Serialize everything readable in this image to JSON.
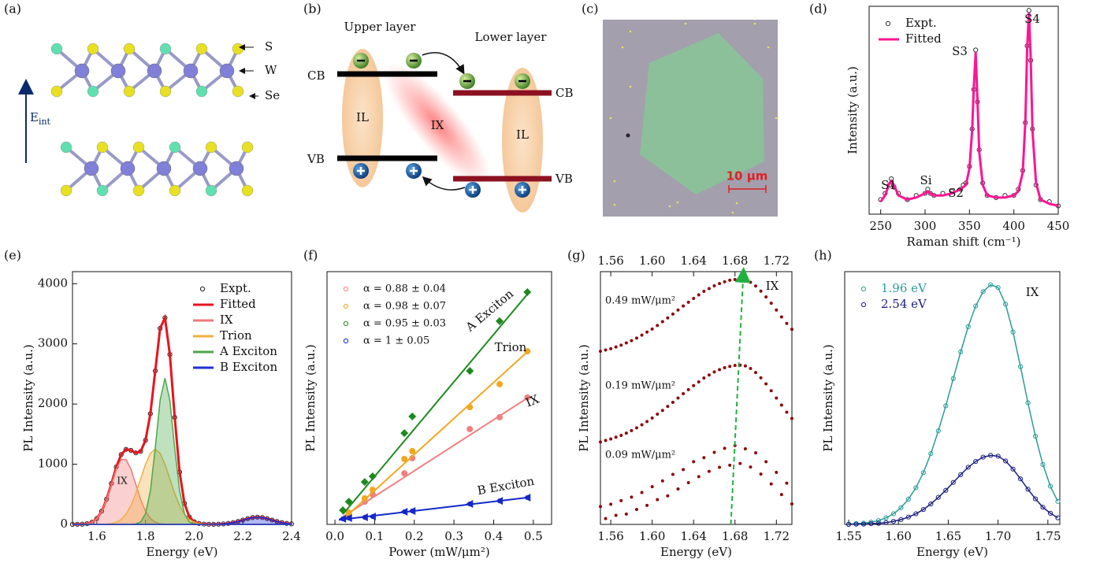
{
  "panel_labels": [
    "(a)",
    "(b)",
    "(c)",
    "(d)",
    "(e)",
    "(f)",
    "(g)",
    "(h)"
  ],
  "panel_a": {
    "atom_labels": [
      "S",
      "W",
      "Se"
    ],
    "field_label": {
      "main": "E",
      "sub": "int"
    }
  },
  "panel_b": {
    "upper_layer": "Upper layer",
    "lower_layer": "Lower layer",
    "band_labels": [
      "CB",
      "VB",
      "CB",
      "VB"
    ],
    "exciton_labels": [
      "IL",
      "IX",
      "IL"
    ]
  },
  "panel_c": {
    "scale_bar": "10 µm"
  },
  "chart_data": [
    {
      "type": "line",
      "x_label": "Raman shift (cm⁻¹)",
      "y_label": "Intensity (a.u.)",
      "legend": "upper left",
      "xlim": [
        237,
        450
      ],
      "xticks": [
        250,
        300,
        350,
        400,
        450
      ],
      "ylim": [
        0,
        100
      ],
      "yticks": [],
      "x": [
        250,
        255,
        260,
        262,
        265,
        270,
        280,
        290,
        300,
        303,
        306,
        310,
        320,
        330,
        340,
        343,
        346,
        350,
        353,
        355,
        357,
        359,
        361,
        365,
        370,
        380,
        390,
        400,
        405,
        410,
        413,
        415,
        417,
        419,
        421,
        425,
        430,
        440,
        450
      ],
      "series": [
        {
          "name": "Expt.",
          "color": "#333333",
          "style": "scatter",
          "values": [
            7,
            10,
            14,
            17,
            13,
            10,
            7,
            9,
            10,
            12,
            10,
            9,
            10,
            11,
            12,
            14,
            15,
            23,
            41,
            60,
            79,
            54,
            31,
            15,
            9,
            8,
            9,
            9,
            12,
            21,
            44,
            81,
            98,
            74,
            41,
            14,
            7,
            6,
            4
          ]
        },
        {
          "name": "Fitted",
          "color": "#ff1493",
          "style": "line",
          "values": [
            6,
            9,
            15,
            16,
            14,
            9,
            7,
            8,
            10,
            11,
            10,
            9,
            9,
            10,
            12,
            13,
            14,
            22,
            40,
            62,
            78,
            55,
            30,
            14,
            9,
            8,
            8,
            9,
            11,
            20,
            45,
            80,
            97,
            75,
            40,
            15,
            7,
            5,
            4
          ]
        }
      ],
      "annotations": [
        "S1",
        "Si",
        "S2",
        "S3",
        "S4"
      ]
    },
    {
      "type": "line",
      "x_label": "Energy (eV)",
      "y_label": "PL Intensity (a.u.)",
      "legend": "upper right",
      "xlim": [
        1.5,
        2.4
      ],
      "xticks": [
        1.6,
        1.8,
        {
          "value": 2,
          "label": "2.0"
        },
        2.2,
        2.4
      ],
      "ylim": [
        0,
        4200
      ],
      "yticks": [
        0,
        1000,
        2000,
        3000,
        4000
      ],
      "x": [
        1.5,
        1.52,
        1.54,
        1.56,
        1.58,
        1.6,
        1.62,
        1.64,
        1.66,
        1.68,
        1.7,
        1.72,
        1.74,
        1.76,
        1.78,
        1.8,
        1.82,
        1.84,
        1.86,
        1.88,
        1.9,
        1.92,
        1.94,
        1.96,
        1.98,
        2,
        2.02,
        2.04,
        2.06,
        2.08,
        2.1,
        2.12,
        2.14,
        2.16,
        2.18,
        2.2,
        2.22,
        2.24,
        2.26,
        2.28,
        2.3,
        2.32,
        2.34,
        2.36,
        2.38,
        2.4
      ],
      "series": [
        {
          "name": "Expt.",
          "color": "#222222",
          "style": "scatter",
          "values": [
            0,
            1,
            3,
            12,
            37,
            98,
            220,
            418,
            681,
            955,
            1160,
            1247,
            1231,
            1188,
            1212,
            1398,
            1839,
            2551,
            3258,
            3434,
            2823,
            1778,
            870,
            348,
            123,
            43,
            15,
            5,
            2,
            1,
            3,
            8,
            16,
            30,
            49,
            73,
            96,
            114,
            120,
            114,
            96,
            73,
            49,
            30,
            16,
            8
          ]
        },
        {
          "name": "Fitted",
          "color": "#e8141c",
          "style": "line",
          "values": [
            0,
            1,
            3,
            12,
            37,
            98,
            220,
            418,
            681,
            955,
            1160,
            1247,
            1231,
            1188,
            1212,
            1398,
            1839,
            2551,
            3258,
            3434,
            2823,
            1778,
            870,
            348,
            123,
            43,
            15,
            5,
            2,
            1,
            3,
            8,
            16,
            30,
            49,
            73,
            96,
            114,
            120,
            114,
            96,
            73,
            49,
            30,
            16,
            8
          ]
        },
        {
          "name": "IX",
          "color": "#f07878",
          "style": "area",
          "values": [
            0,
            1,
            3,
            12,
            37,
            98,
            218,
            413,
            667,
            919,
            1078,
            1078,
            919,
            667,
            413,
            218,
            98,
            37,
            12,
            3,
            1,
            0,
            0,
            0,
            0,
            0,
            0,
            0,
            0,
            0,
            0,
            0,
            0,
            0,
            0,
            0,
            0,
            0,
            0,
            0,
            0,
            0,
            0,
            0,
            0,
            0
          ]
        },
        {
          "name": "Trion",
          "color": "#f0b040",
          "style": "area",
          "values": [
            0,
            0,
            0,
            0,
            0,
            0,
            2,
            5,
            14,
            36,
            82,
            169,
            311,
            514,
            758,
            1001,
            1182,
            1250,
            1182,
            1001,
            758,
            514,
            311,
            169,
            82,
            36,
            14,
            5,
            2,
            0,
            0,
            0,
            0,
            0,
            0,
            0,
            0,
            0,
            0,
            0,
            0,
            0,
            0,
            0,
            0,
            0
          ]
        },
        {
          "name": "A Exciton",
          "color": "#4aa84a",
          "style": "area",
          "values": [
            0,
            0,
            0,
            0,
            0,
            0,
            0,
            0,
            0,
            0,
            0,
            0,
            1,
            7,
            41,
            179,
            559,
            1264,
            2064,
            2430,
            2064,
            1264,
            559,
            179,
            41,
            7,
            1,
            0,
            0,
            0,
            0,
            0,
            0,
            0,
            0,
            0,
            0,
            0,
            0,
            0,
            0,
            0,
            0,
            0,
            0,
            0
          ]
        },
        {
          "name": "B Exciton",
          "color": "#1f2fd0",
          "style": "area",
          "values": [
            0,
            0,
            0,
            0,
            0,
            0,
            0,
            0,
            0,
            0,
            0,
            0,
            0,
            0,
            0,
            0,
            0,
            0,
            0,
            0,
            0,
            0,
            0,
            0,
            0,
            0,
            0,
            0,
            0,
            1,
            3,
            8,
            16,
            30,
            49,
            73,
            96,
            114,
            120,
            114,
            96,
            73,
            49,
            30,
            16,
            8
          ]
        }
      ],
      "annotations": [
        "IX"
      ]
    },
    {
      "type": "scatter",
      "x_label": "Power (mW/μm²)",
      "y_label": "PL Intensity (a.u.)",
      "legend": "upper left",
      "xlim": [
        -0.02,
        0.546
      ],
      "xticks": [
        {
          "value": 0,
          "label": "0.0"
        },
        0.1,
        0.2,
        0.3,
        0.4,
        0.5
      ],
      "ylim": [
        0,
        100
      ],
      "yticks": [],
      "series": [
        {
          "name": "α = 0.88 ± 0.04",
          "color": "#f08080",
          "marker": "circle",
          "x": [
            0.035,
            0.075,
            0.095,
            0.175,
            0.195,
            0.34,
            0.415,
            0.485
          ],
          "values": [
            4.0,
            9.0,
            11.8,
            20.2,
            26.2,
            37.7,
            42.4,
            50.2
          ],
          "fit_x": [
            0.02,
            0.49
          ],
          "fit_values": [
            3,
            50.5
          ]
        },
        {
          "name": "α = 0.98 ± 0.07",
          "color": "#f0a820",
          "marker": "circle",
          "x": [
            0.035,
            0.075,
            0.095,
            0.175,
            0.195,
            0.34,
            0.415,
            0.485
          ],
          "values": [
            4.7,
            10.3,
            13.7,
            25.9,
            29.0,
            46.4,
            55.5,
            68.5
          ],
          "fit_x": [
            0.02,
            0.49
          ],
          "fit_values": [
            2,
            69
          ]
        },
        {
          "name": "α = 0.95 ± 0.03",
          "color": "#1e8a1e",
          "marker": "diamond",
          "x": [
            0.02,
            0.035,
            0.075,
            0.095,
            0.175,
            0.195,
            0.34,
            0.415,
            0.485
          ],
          "values": [
            5.6,
            9.0,
            16.8,
            19.0,
            36.1,
            42.7,
            60.7,
            80.4,
            91.9
          ],
          "fit_x": [
            0.02,
            0.49
          ],
          "fit_values": [
            4,
            92
          ]
        },
        {
          "name": "α = 1 ± 0.05",
          "color": "#1428c8",
          "marker": "triangle-left",
          "x": [
            0.02,
            0.035,
            0.075,
            0.095,
            0.175,
            0.195,
            0.34,
            0.415,
            0.485
          ],
          "values": [
            2.2,
            2.5,
            2.8,
            3.1,
            5.0,
            5.3,
            8.1,
            9.3,
            10.6
          ],
          "fit_x": [
            0.01,
            0.49
          ],
          "fit_values": [
            1.8,
            10.7
          ]
        }
      ],
      "annotations": [
        "A Exciton",
        "Trion",
        "IX",
        "B Exciton"
      ]
    },
    {
      "type": "scatter",
      "x_label": "Energy (eV)",
      "y_label": "PL Intensity (a.u.)",
      "top_axis": true,
      "xlim": [
        1.55,
        1.735
      ],
      "xticks": [
        1.56,
        {
          "value": 1.6,
          "label": "1.60"
        },
        1.64,
        1.68,
        1.72
      ],
      "ylim": [
        0,
        100
      ],
      "yticks": [],
      "x": [
        1.55,
        1.555,
        1.56,
        1.565,
        1.57,
        1.575,
        1.58,
        1.585,
        1.59,
        1.595,
        1.6,
        1.605,
        1.61,
        1.615,
        1.62,
        1.625,
        1.63,
        1.635,
        1.64,
        1.645,
        1.65,
        1.655,
        1.66,
        1.665,
        1.67,
        1.675,
        1.68,
        1.685,
        1.69,
        1.695,
        1.7,
        1.705,
        1.71,
        1.715,
        1.72,
        1.725,
        1.73,
        1.735
      ],
      "series": [
        {
          "name": "0.49 mW/μm²",
          "color": "#8b0a0a",
          "style": "dots",
          "values": [
            68.5,
            69.0,
            69.5,
            70.2,
            70.9,
            71.8,
            72.7,
            73.7,
            74.9,
            76.1,
            77.3,
            78.7,
            80.2,
            81.7,
            83.2,
            84.8,
            86.4,
            87.9,
            89.4,
            90.8,
            92.2,
            93.3,
            94.4,
            95.3,
            96.0,
            96.6,
            96.9,
            97.0,
            96.7,
            95.8,
            94.3,
            92.3,
            90.0,
            87.5,
            84.8,
            82.1,
            79.5,
            77.2
          ]
        },
        {
          "name": "0.19 mW/μm²",
          "color": "#8b0a0a",
          "style": "dots",
          "values": [
            32.6,
            33.2,
            33.8,
            34.5,
            35.2,
            36.1,
            37.1,
            38.2,
            39.4,
            40.7,
            42.1,
            43.6,
            45.1,
            46.7,
            48.3,
            50.0,
            51.7,
            53.3,
            54.9,
            56.4,
            57.9,
            59.1,
            60.3,
            61.2,
            62.0,
            62.5,
            62.9,
            63.0,
            62.7,
            61.7,
            60.1,
            58.0,
            55.6,
            52.9,
            50.0,
            47.2,
            44.4,
            41.9
          ]
        },
        {
          "name": "0.09 mW/μm²",
          "color": "#8b0a0a",
          "style": "dots",
          "values": [
            7.1,
            2.3,
            8.0,
            3.6,
            9.4,
            4.1,
            10.8,
            5.9,
            12.6,
            7.5,
            14.9,
            9.8,
            17.2,
            11.3,
            19.8,
            14.0,
            21.7,
            16.5,
            24.8,
            18.9,
            26.4,
            21.0,
            28.5,
            22.6,
            30.1,
            23.4,
            31.2,
            24.1,
            29.9,
            22.7,
            28.3,
            19.9,
            24.8,
            16.0,
            20.6,
            11.8,
            16.3,
            8.1
          ]
        }
      ],
      "annotations": [
        "IX"
      ]
    },
    {
      "type": "line",
      "x_label": "Energy (eV)",
      "y_label": "PL Intensity (a.u.)",
      "legend": "upper left",
      "xlim": [
        1.546,
        1.762
      ],
      "xticks": [
        1.55,
        {
          "value": 1.6,
          "label": "1.60"
        },
        1.65,
        {
          "value": 1.7,
          "label": "1.70"
        },
        1.75
      ],
      "ylim": [
        0,
        100
      ],
      "yticks": [],
      "x": [
        1.55,
        1.5575,
        1.565,
        1.5725,
        1.58,
        1.5875,
        1.595,
        1.6025,
        1.61,
        1.6175,
        1.625,
        1.6325,
        1.64,
        1.6475,
        1.655,
        1.6625,
        1.67,
        1.6775,
        1.685,
        1.6925,
        1.7,
        1.7075,
        1.715,
        1.7225,
        1.73,
        1.7375,
        1.745,
        1.7525,
        1.76
      ],
      "series": [
        {
          "name": "1.96 eV",
          "color": "#2a9d9a",
          "style": "scatter+line",
          "values": [
            0.1,
            0.3,
            0.5,
            0.9,
            1.5,
            2.6,
            4.2,
            6.6,
            10.0,
            14.5,
            20.5,
            28.0,
            37.0,
            46.9,
            57.7,
            68.3,
            78.2,
            86.4,
            92.1,
            94.8,
            93.7,
            87.1,
            76.1,
            62.4,
            48.1,
            34.9,
            23.7,
            15.1,
            9.1
          ]
        },
        {
          "name": "2.54 eV",
          "color": "#1c1c80",
          "style": "scatter+line",
          "values": [
            0.0,
            0.1,
            0.1,
            0.3,
            0.4,
            0.7,
            1.2,
            1.9,
            2.9,
            4.2,
            5.9,
            8.1,
            10.7,
            13.5,
            16.6,
            19.7,
            22.6,
            24.9,
            26.6,
            27.3,
            27.0,
            25.1,
            21.9,
            18.0,
            13.9,
            10.1,
            6.8,
            4.4,
            2.6
          ]
        }
      ],
      "annotations": [
        "IX"
      ]
    }
  ]
}
